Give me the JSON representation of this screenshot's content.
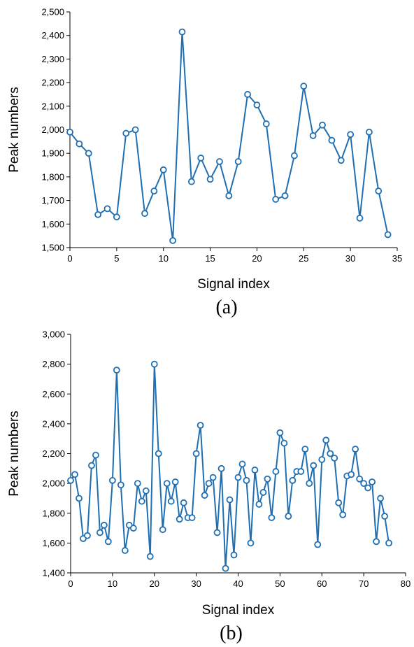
{
  "colors": {
    "series": "#1f6fb2",
    "axis": "#000000"
  },
  "chart_data": [
    {
      "type": "line",
      "caption": "(a)",
      "xlabel": "Signal index",
      "ylabel": "Peak numbers",
      "xlim": [
        0,
        35
      ],
      "ylim": [
        1500,
        2500
      ],
      "xticks": [
        0,
        5,
        10,
        15,
        20,
        25,
        30,
        35
      ],
      "yticks": [
        1500,
        1600,
        1700,
        1800,
        1900,
        2000,
        2100,
        2200,
        2300,
        2400,
        2500
      ],
      "ytick_labels": [
        "1,500",
        "1,600",
        "1,700",
        "1,800",
        "1,900",
        "2,000",
        "2,100",
        "2,200",
        "2,300",
        "2,400",
        "2,500"
      ],
      "x": [
        0,
        1,
        2,
        3,
        4,
        5,
        6,
        7,
        8,
        9,
        10,
        11,
        12,
        13,
        14,
        15,
        16,
        17,
        18,
        19,
        20,
        21,
        22,
        23,
        24,
        25,
        26,
        27,
        28,
        29,
        30,
        31,
        32,
        33,
        34
      ],
      "values": [
        1990,
        1940,
        1900,
        1640,
        1665,
        1630,
        1985,
        2000,
        1645,
        1740,
        1830,
        1530,
        2415,
        1780,
        1880,
        1790,
        1865,
        1720,
        1865,
        2150,
        2105,
        2025,
        1705,
        1720,
        1890,
        2185,
        1975,
        2020,
        1955,
        1870,
        1980,
        1625,
        1990,
        1740,
        1555
      ]
    },
    {
      "type": "line",
      "caption": "(b)",
      "xlabel": "Signal index",
      "ylabel": "Peak numbers",
      "xlim": [
        0,
        80
      ],
      "ylim": [
        1400,
        3000
      ],
      "xticks": [
        0,
        10,
        20,
        30,
        40,
        50,
        60,
        70,
        80
      ],
      "yticks": [
        1400,
        1600,
        1800,
        2000,
        2200,
        2400,
        2600,
        2800,
        3000
      ],
      "ytick_labels": [
        "1,400",
        "1,600",
        "1,800",
        "2,000",
        "2,200",
        "2,400",
        "2,600",
        "2,800",
        "3,000"
      ],
      "x": [
        0,
        1,
        2,
        3,
        4,
        5,
        6,
        7,
        8,
        9,
        10,
        11,
        12,
        13,
        14,
        15,
        16,
        17,
        18,
        19,
        20,
        21,
        22,
        23,
        24,
        25,
        26,
        27,
        28,
        29,
        30,
        31,
        32,
        33,
        34,
        35,
        36,
        37,
        38,
        39,
        40,
        41,
        42,
        43,
        44,
        45,
        46,
        47,
        48,
        49,
        50,
        51,
        52,
        53,
        54,
        55,
        56,
        57,
        58,
        59,
        60,
        61,
        62,
        63,
        64,
        65,
        66,
        67,
        68,
        69,
        70,
        71,
        72,
        73,
        74,
        75,
        76
      ],
      "values": [
        2020,
        2060,
        1900,
        1630,
        1650,
        2120,
        2190,
        1670,
        1720,
        1610,
        2020,
        2760,
        1990,
        1550,
        1720,
        1700,
        2000,
        1880,
        1950,
        1510,
        2800,
        2200,
        1690,
        2000,
        1880,
        2010,
        1760,
        1870,
        1770,
        1770,
        2200,
        2390,
        1920,
        2000,
        2040,
        1670,
        2100,
        1430,
        1890,
        1520,
        2040,
        2130,
        2020,
        1600,
        2090,
        1860,
        1940,
        2030,
        1770,
        2080,
        2340,
        2270,
        1780,
        2020,
        2080,
        2080,
        2230,
        2000,
        2120,
        1590,
        2160,
        2290,
        2200,
        2170,
        1870,
        1790,
        2050,
        2060,
        2230,
        2030,
        2000,
        1970,
        2010,
        1610,
        1900,
        1780,
        1600
      ]
    }
  ]
}
